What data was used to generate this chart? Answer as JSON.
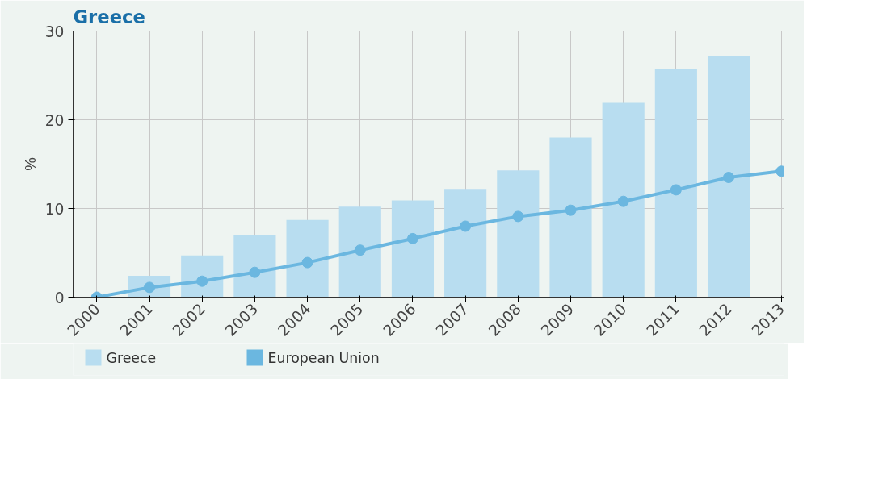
{
  "chart_data": {
    "type": "bar",
    "title": "Greece",
    "ylabel": "%",
    "categories": [
      "2000",
      "2001",
      "2002",
      "2003",
      "2004",
      "2005",
      "2006",
      "2007",
      "2008",
      "2009",
      "2010",
      "2011",
      "2012",
      "2013"
    ],
    "series": [
      {
        "name": "Greece",
        "color": "#b8ddf0",
        "values": [
          null,
          2.4,
          4.7,
          7.0,
          8.7,
          10.2,
          10.9,
          12.2,
          14.3,
          18.0,
          21.9,
          25.7,
          27.2,
          null
        ]
      },
      {
        "name": "European Union",
        "type": "line",
        "color": "#6bb7e0",
        "marker": "circle",
        "values": [
          0,
          1.1,
          1.8,
          2.8,
          3.9,
          5.3,
          6.6,
          8.0,
          9.1,
          9.8,
          10.8,
          12.1,
          13.5,
          14.2
        ]
      }
    ],
    "ylim": [
      0,
      30
    ],
    "yticks": [
      0,
      10,
      20,
      30
    ],
    "grid": true,
    "legend": "bottom"
  }
}
